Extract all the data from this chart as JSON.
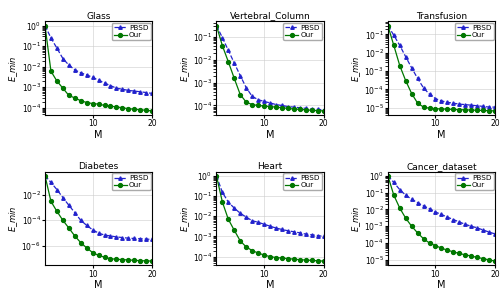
{
  "titles": [
    "Glass",
    "Vertebral_Column",
    "Transfusion",
    "Diabetes",
    "Heart",
    "Cancer_dataset"
  ],
  "M_values": [
    2,
    3,
    4,
    5,
    6,
    7,
    8,
    9,
    10,
    11,
    12,
    13,
    14,
    15,
    16,
    17,
    18,
    19,
    20
  ],
  "pbsd_color": "#2222cc",
  "our_color": "#007700",
  "ylabel": "E_min",
  "xlabel": "M",
  "datasets": {
    "Glass": {
      "pbsd": [
        1.0,
        0.25,
        0.08,
        0.025,
        0.012,
        0.007,
        0.005,
        0.004,
        0.003,
        0.0022,
        0.0016,
        0.0012,
        0.0009,
        0.0008,
        0.0007,
        0.00065,
        0.0006,
        0.00055,
        0.0005
      ],
      "our": [
        1.0,
        0.006,
        0.002,
        0.0009,
        0.0004,
        0.0003,
        0.00022,
        0.00018,
        0.00016,
        0.00015,
        0.00013,
        0.00012,
        0.00011,
        0.0001,
        9e-05,
        8.5e-05,
        8e-05,
        7.5e-05,
        7e-05
      ]
    },
    "Vertebral_Column": {
      "pbsd": [
        0.3,
        0.09,
        0.025,
        0.007,
        0.002,
        0.0006,
        0.00025,
        0.00018,
        0.00015,
        0.00013,
        0.00011,
        0.0001,
        9e-05,
        8.5e-05,
        8e-05,
        7.5e-05,
        7e-05,
        6.8e-05,
        6.5e-05
      ],
      "our": [
        0.3,
        0.04,
        0.008,
        0.0015,
        0.0003,
        0.00014,
        0.00011,
        0.0001,
        9.5e-05,
        9e-05,
        8.5e-05,
        8e-05,
        7.5e-05,
        7e-05,
        6.8e-05,
        6.5e-05,
        6.2e-05,
        6e-05,
        5.8e-05
      ]
    },
    "Transfusion": {
      "pbsd": [
        0.3,
        0.09,
        0.025,
        0.006,
        0.0015,
        0.0004,
        0.00012,
        5.5e-05,
        3.2e-05,
        2.4e-05,
        2e-05,
        1.8e-05,
        1.6e-05,
        1.5e-05,
        1.4e-05,
        1.3e-05,
        1.2e-05,
        1.1e-05,
        1.1e-05
      ],
      "our": [
        0.3,
        0.025,
        0.002,
        0.0003,
        6e-05,
        1.8e-05,
        1.1e-05,
        9.5e-06,
        9e-06,
        8.7e-06,
        8.5e-06,
        8.2e-06,
        8e-06,
        7.8e-06,
        7.6e-06,
        7.4e-06,
        7.2e-06,
        7e-06,
        6.8e-06
      ]
    },
    "Diabetes": {
      "pbsd": [
        0.3,
        0.09,
        0.025,
        0.006,
        0.0015,
        0.0004,
        0.0001,
        4e-05,
        1.8e-05,
        1e-05,
        7e-06,
        6e-06,
        5e-06,
        4.5e-06,
        4e-06,
        3.8e-06,
        3.6e-06,
        3.4e-06,
        3.2e-06
      ],
      "our": [
        0.3,
        0.003,
        0.0005,
        0.0001,
        2.5e-05,
        6e-06,
        1.8e-06,
        7e-07,
        3e-07,
        1.8e-07,
        1.3e-07,
        1e-07,
        9e-08,
        8.5e-08,
        8e-08,
        7.5e-08,
        7e-08,
        6.8e-08,
        6.5e-08
      ]
    },
    "Heart": {
      "pbsd": [
        1.0,
        0.15,
        0.05,
        0.025,
        0.014,
        0.009,
        0.006,
        0.005,
        0.004,
        0.0032,
        0.0026,
        0.0022,
        0.0019,
        0.0017,
        0.0015,
        0.0013,
        0.0012,
        0.0011,
        0.001
      ],
      "our": [
        1.0,
        0.05,
        0.007,
        0.002,
        0.0006,
        0.0003,
        0.0002,
        0.00015,
        0.00012,
        0.0001,
        9e-05,
        8.5e-05,
        8e-05,
        7.5e-05,
        7e-05,
        6.8e-05,
        6.5e-05,
        6.2e-05,
        6e-05
      ]
    },
    "Cancer_dataset": {
      "pbsd": [
        1.0,
        0.4,
        0.15,
        0.07,
        0.04,
        0.025,
        0.016,
        0.011,
        0.007,
        0.005,
        0.0035,
        0.0025,
        0.0018,
        0.0013,
        0.001,
        0.0008,
        0.0006,
        0.00045,
        0.00035
      ],
      "our": [
        1.0,
        0.07,
        0.012,
        0.003,
        0.001,
        0.0004,
        0.00018,
        0.0001,
        7e-05,
        5e-05,
        3.8e-05,
        3e-05,
        2.4e-05,
        2e-05,
        1.7e-05,
        1.4e-05,
        1.2e-05,
        1e-05,
        8.5e-06
      ]
    }
  }
}
